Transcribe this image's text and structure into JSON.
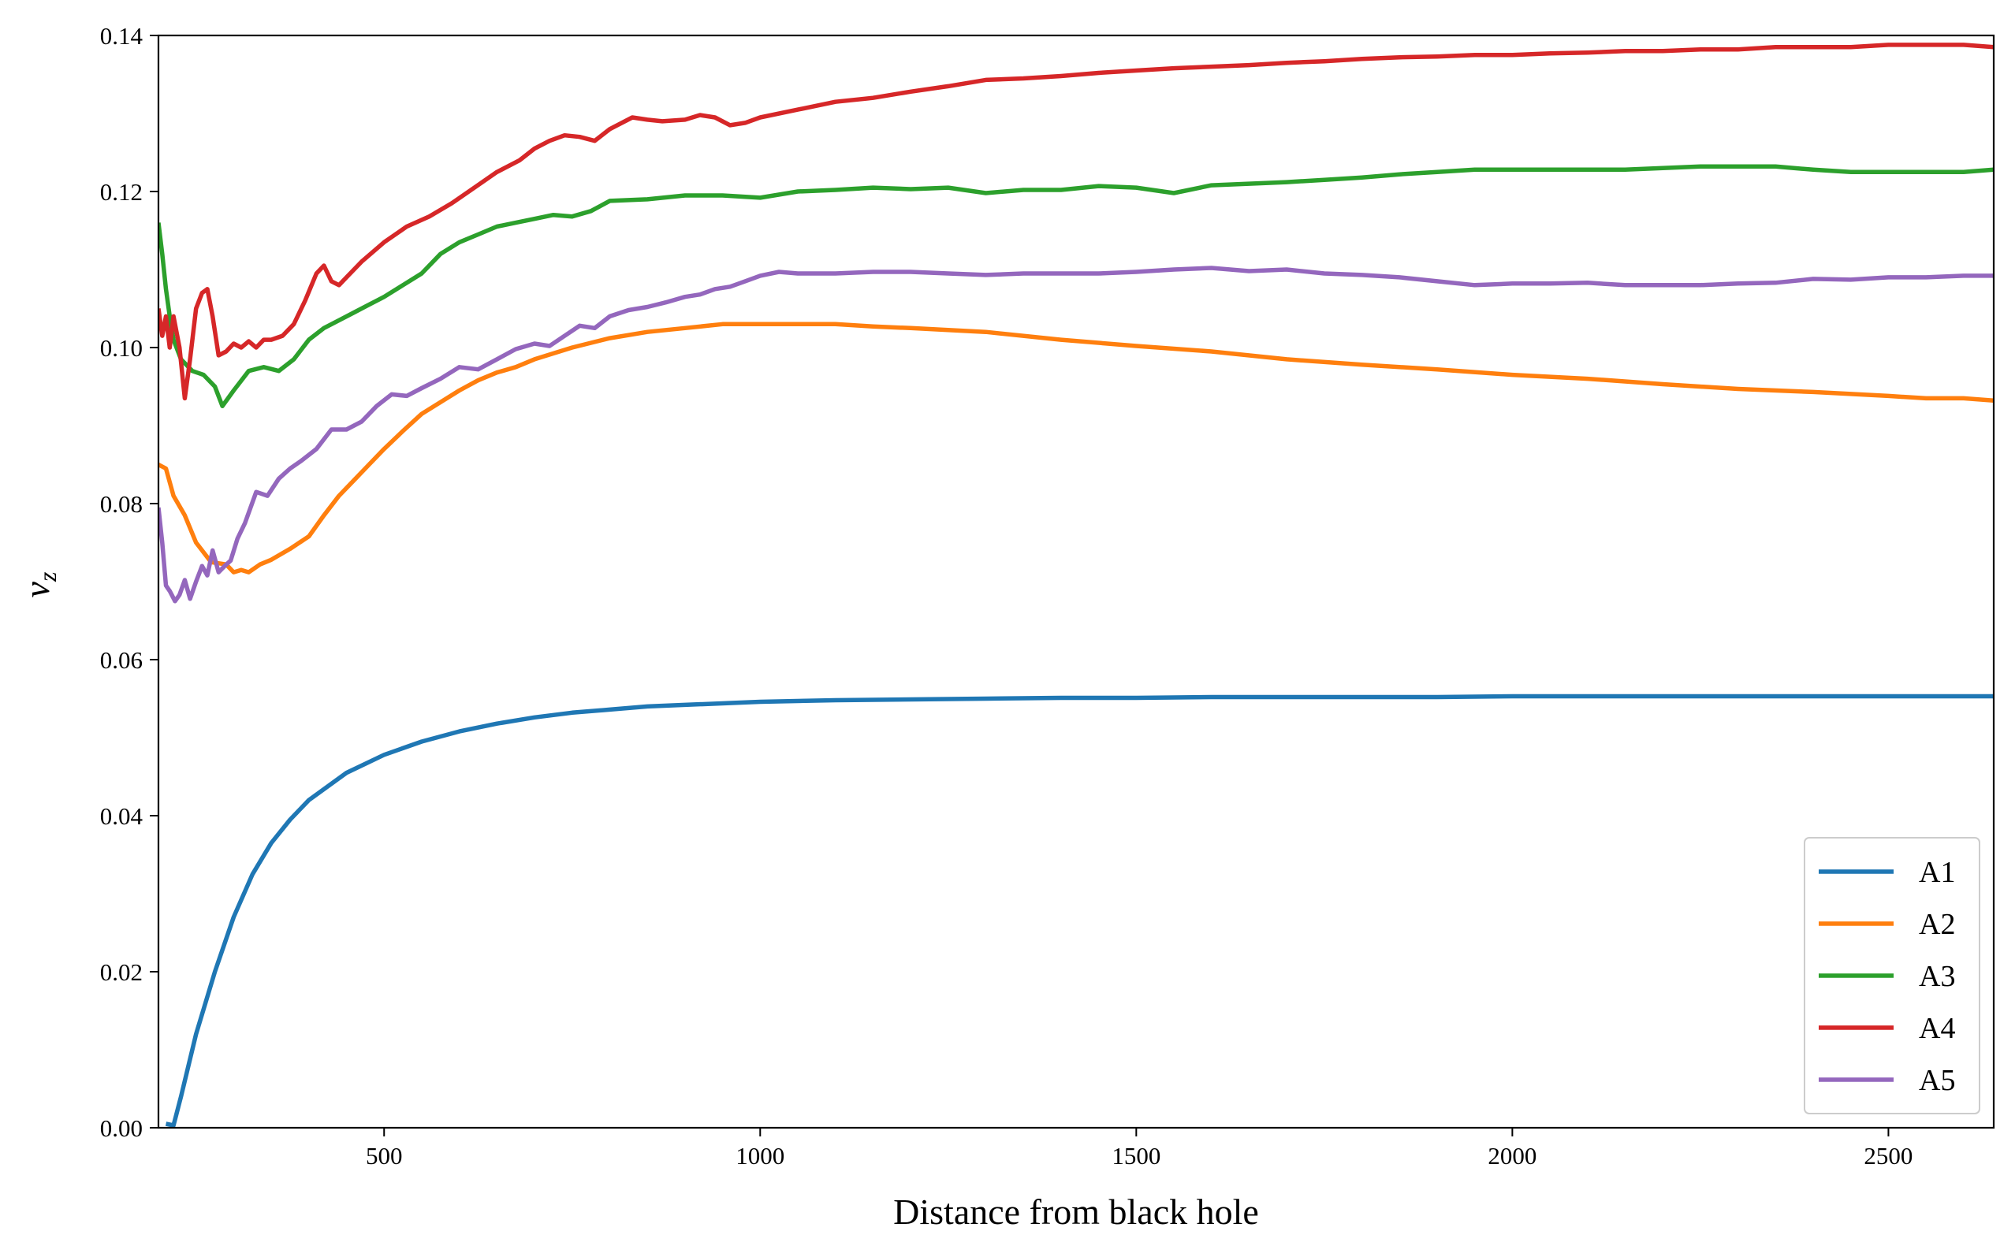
{
  "chart_data": {
    "type": "line",
    "title": "",
    "xlabel": "Distance from black hole",
    "ylabel": "v",
    "ylabel_subscript": "z",
    "xlim": [
      200,
      2640
    ],
    "ylim": [
      0.0,
      0.14
    ],
    "xticks": [
      500,
      1000,
      1500,
      2000,
      2500
    ],
    "xtick_labels": [
      "500",
      "1000",
      "1500",
      "2000",
      "2500"
    ],
    "yticks": [
      0.0,
      0.02,
      0.04,
      0.06,
      0.08,
      0.1,
      0.12,
      0.14
    ],
    "ytick_labels": [
      "0.00",
      "0.02",
      "0.04",
      "0.06",
      "0.08",
      "0.10",
      "0.12",
      "0.14"
    ],
    "grid": false,
    "legend_position": "lower-right",
    "series": [
      {
        "name": "A1",
        "color": "#1f77b4",
        "x": [
          210,
          220,
          230,
          250,
          275,
          300,
          325,
          350,
          375,
          400,
          450,
          500,
          550,
          600,
          650,
          700,
          750,
          800,
          850,
          900,
          1000,
          1100,
          1200,
          1300,
          1400,
          1500,
          1600,
          1700,
          1800,
          1900,
          2000,
          2100,
          2200,
          2300,
          2400,
          2500,
          2640
        ],
        "y": [
          0.0005,
          0.0003,
          0.004,
          0.012,
          0.02,
          0.027,
          0.0325,
          0.0365,
          0.0395,
          0.042,
          0.0455,
          0.0478,
          0.0495,
          0.0508,
          0.0518,
          0.0526,
          0.0532,
          0.0536,
          0.054,
          0.0542,
          0.0546,
          0.0548,
          0.0549,
          0.055,
          0.0551,
          0.0551,
          0.0552,
          0.0552,
          0.0552,
          0.0552,
          0.0553,
          0.0553,
          0.0553,
          0.0553,
          0.0553,
          0.0553,
          0.0553
        ]
      },
      {
        "name": "A2",
        "color": "#ff7f0e",
        "x": [
          200,
          210,
          220,
          235,
          250,
          270,
          290,
          300,
          310,
          320,
          335,
          350,
          375,
          400,
          420,
          440,
          460,
          480,
          500,
          525,
          550,
          575,
          600,
          625,
          650,
          675,
          700,
          750,
          800,
          850,
          900,
          950,
          1000,
          1050,
          1100,
          1150,
          1200,
          1300,
          1400,
          1500,
          1600,
          1700,
          1800,
          1900,
          2000,
          2100,
          2200,
          2300,
          2400,
          2500,
          2550,
          2600,
          2640
        ],
        "y": [
          0.085,
          0.0845,
          0.081,
          0.0785,
          0.075,
          0.0725,
          0.0722,
          0.0712,
          0.0715,
          0.0712,
          0.0722,
          0.0728,
          0.0742,
          0.0758,
          0.0785,
          0.081,
          0.083,
          0.085,
          0.087,
          0.0893,
          0.0915,
          0.093,
          0.0945,
          0.0958,
          0.0968,
          0.0975,
          0.0985,
          0.1,
          0.1012,
          0.102,
          0.1025,
          0.103,
          0.103,
          0.103,
          0.103,
          0.1027,
          0.1025,
          0.102,
          0.101,
          0.1002,
          0.0995,
          0.0985,
          0.0978,
          0.0972,
          0.0965,
          0.096,
          0.0953,
          0.0947,
          0.0943,
          0.0938,
          0.0935,
          0.0935,
          0.0932
        ]
      },
      {
        "name": "A3",
        "color": "#2ca02c",
        "x": [
          200,
          205,
          210,
          215,
          220,
          230,
          245,
          260,
          275,
          285,
          300,
          320,
          340,
          360,
          380,
          400,
          420,
          440,
          460,
          480,
          500,
          525,
          550,
          575,
          600,
          625,
          650,
          675,
          700,
          725,
          750,
          775,
          800,
          850,
          900,
          950,
          1000,
          1050,
          1100,
          1150,
          1200,
          1250,
          1300,
          1350,
          1400,
          1450,
          1500,
          1550,
          1600,
          1650,
          1700,
          1750,
          1800,
          1850,
          1900,
          1950,
          2000,
          2050,
          2100,
          2150,
          2200,
          2250,
          2300,
          2350,
          2400,
          2450,
          2500,
          2550,
          2600,
          2640
        ],
        "y": [
          0.116,
          0.112,
          0.1075,
          0.104,
          0.101,
          0.0985,
          0.097,
          0.0965,
          0.095,
          0.0925,
          0.0945,
          0.097,
          0.0975,
          0.097,
          0.0985,
          0.101,
          0.1025,
          0.1035,
          0.1045,
          0.1055,
          0.1065,
          0.108,
          0.1095,
          0.112,
          0.1135,
          0.1145,
          0.1155,
          0.116,
          0.1165,
          0.117,
          0.1168,
          0.1175,
          0.1188,
          0.119,
          0.1195,
          0.1195,
          0.1192,
          0.12,
          0.1202,
          0.1205,
          0.1203,
          0.1205,
          0.1198,
          0.1202,
          0.1202,
          0.1207,
          0.1205,
          0.1198,
          0.1208,
          0.121,
          0.1212,
          0.1215,
          0.1218,
          0.1222,
          0.1225,
          0.1228,
          0.1228,
          0.1228,
          0.1228,
          0.1228,
          0.123,
          0.1232,
          0.1232,
          0.1232,
          0.1228,
          0.1225,
          0.1225,
          0.1225,
          0.1225,
          0.1228
        ]
      },
      {
        "name": "A4",
        "color": "#d62728",
        "x": [
          200,
          205,
          210,
          215,
          220,
          228,
          235,
          242,
          250,
          258,
          265,
          272,
          280,
          290,
          300,
          310,
          320,
          330,
          340,
          350,
          365,
          380,
          395,
          410,
          420,
          430,
          440,
          450,
          470,
          500,
          530,
          560,
          590,
          620,
          650,
          680,
          700,
          720,
          740,
          760,
          780,
          800,
          830,
          850,
          870,
          900,
          920,
          940,
          960,
          980,
          1000,
          1050,
          1100,
          1150,
          1200,
          1250,
          1300,
          1350,
          1400,
          1450,
          1500,
          1550,
          1600,
          1650,
          1700,
          1750,
          1800,
          1850,
          1900,
          1950,
          2000,
          2050,
          2100,
          2150,
          2200,
          2250,
          2300,
          2350,
          2400,
          2450,
          2500,
          2550,
          2600,
          2640
        ],
        "y": [
          0.105,
          0.1015,
          0.104,
          0.1,
          0.104,
          0.1,
          0.0935,
          0.0985,
          0.105,
          0.107,
          0.1075,
          0.104,
          0.099,
          0.0995,
          0.1005,
          0.1,
          0.1008,
          0.1,
          0.101,
          0.101,
          0.1015,
          0.103,
          0.106,
          0.1095,
          0.1105,
          0.1085,
          0.108,
          0.109,
          0.111,
          0.1135,
          0.1155,
          0.1168,
          0.1185,
          0.1205,
          0.1225,
          0.124,
          0.1255,
          0.1265,
          0.1272,
          0.127,
          0.1265,
          0.128,
          0.1295,
          0.1292,
          0.129,
          0.1292,
          0.1298,
          0.1295,
          0.1285,
          0.1288,
          0.1295,
          0.1305,
          0.1315,
          0.132,
          0.1328,
          0.1335,
          0.1343,
          0.1345,
          0.1348,
          0.1352,
          0.1355,
          0.1358,
          0.136,
          0.1362,
          0.1365,
          0.1367,
          0.137,
          0.1372,
          0.1373,
          0.1375,
          0.1375,
          0.1377,
          0.1378,
          0.138,
          0.138,
          0.1382,
          0.1382,
          0.1385,
          0.1385,
          0.1385,
          0.1388,
          0.1388,
          0.1388,
          0.1385
        ]
      },
      {
        "name": "A5",
        "color": "#9467bd",
        "x": [
          200,
          205,
          210,
          215,
          222,
          228,
          235,
          242,
          250,
          258,
          265,
          272,
          280,
          288,
          296,
          305,
          315,
          330,
          345,
          360,
          375,
          390,
          410,
          430,
          450,
          470,
          490,
          510,
          530,
          550,
          575,
          600,
          625,
          650,
          675,
          700,
          720,
          740,
          760,
          780,
          800,
          825,
          850,
          875,
          900,
          920,
          940,
          960,
          980,
          1000,
          1025,
          1050,
          1100,
          1150,
          1200,
          1250,
          1300,
          1350,
          1400,
          1450,
          1500,
          1550,
          1600,
          1650,
          1700,
          1750,
          1800,
          1850,
          1900,
          1950,
          2000,
          2050,
          2100,
          2150,
          2200,
          2250,
          2300,
          2350,
          2400,
          2450,
          2500,
          2550,
          2600,
          2640
        ],
        "y": [
          0.0795,
          0.075,
          0.0695,
          0.0688,
          0.0675,
          0.0683,
          0.0702,
          0.0678,
          0.07,
          0.072,
          0.0708,
          0.074,
          0.0712,
          0.072,
          0.0727,
          0.0755,
          0.0775,
          0.0815,
          0.081,
          0.0832,
          0.0845,
          0.0855,
          0.087,
          0.0895,
          0.0895,
          0.0905,
          0.0925,
          0.094,
          0.0938,
          0.0948,
          0.096,
          0.0975,
          0.0972,
          0.0985,
          0.0998,
          0.1005,
          0.1002,
          0.1015,
          0.1028,
          0.1025,
          0.104,
          0.1048,
          0.1052,
          0.1058,
          0.1065,
          0.1068,
          0.1075,
          0.1078,
          0.1085,
          0.1092,
          0.1097,
          0.1095,
          0.1095,
          0.1097,
          0.1097,
          0.1095,
          0.1093,
          0.1095,
          0.1095,
          0.1095,
          0.1097,
          0.11,
          0.1102,
          0.1098,
          0.11,
          0.1095,
          0.1093,
          0.109,
          0.1085,
          0.108,
          0.1082,
          0.1082,
          0.1083,
          0.108,
          0.108,
          0.108,
          0.1082,
          0.1083,
          0.1088,
          0.1087,
          0.109,
          0.109,
          0.1092,
          0.1092
        ]
      }
    ]
  }
}
